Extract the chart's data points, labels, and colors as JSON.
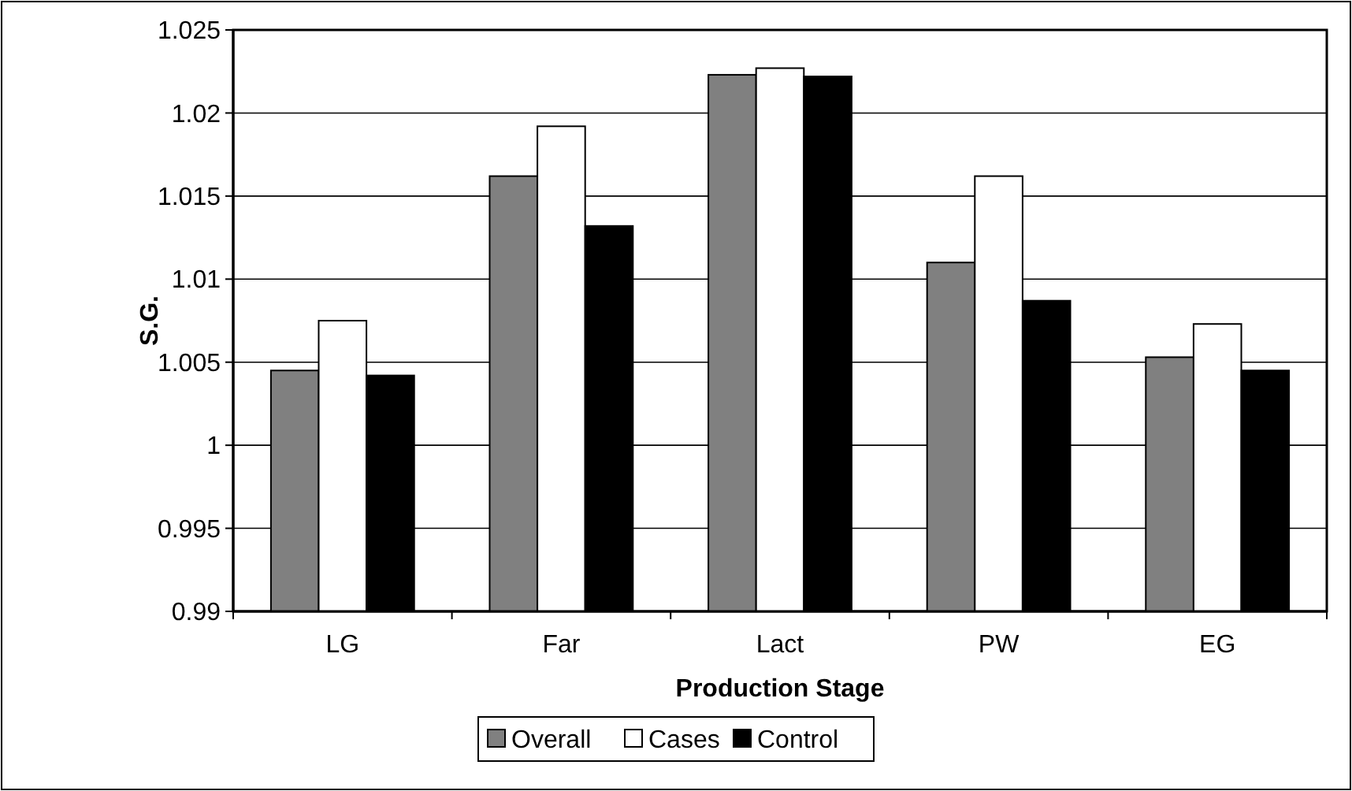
{
  "chart_data": {
    "type": "bar",
    "xlabel": "Production Stage",
    "ylabel": "S.G.",
    "categories": [
      "LG",
      "Far",
      "Lact",
      "PW",
      "EG"
    ],
    "series": [
      {
        "name": "Overall",
        "color": "#808080",
        "values": [
          1.0045,
          1.0162,
          1.0223,
          1.011,
          1.0053
        ]
      },
      {
        "name": "Cases",
        "color": "#ffffff",
        "values": [
          1.0075,
          1.0192,
          1.0227,
          1.0162,
          1.0073
        ]
      },
      {
        "name": "Control",
        "color": "#000000",
        "values": [
          1.0042,
          1.0132,
          1.0222,
          1.0087,
          1.0045
        ]
      }
    ],
    "ylim": [
      0.99,
      1.025
    ],
    "yticks": [
      0.99,
      0.995,
      1,
      1.005,
      1.01,
      1.015,
      1.02,
      1.025
    ],
    "grid": "y",
    "legend": "bottom"
  }
}
